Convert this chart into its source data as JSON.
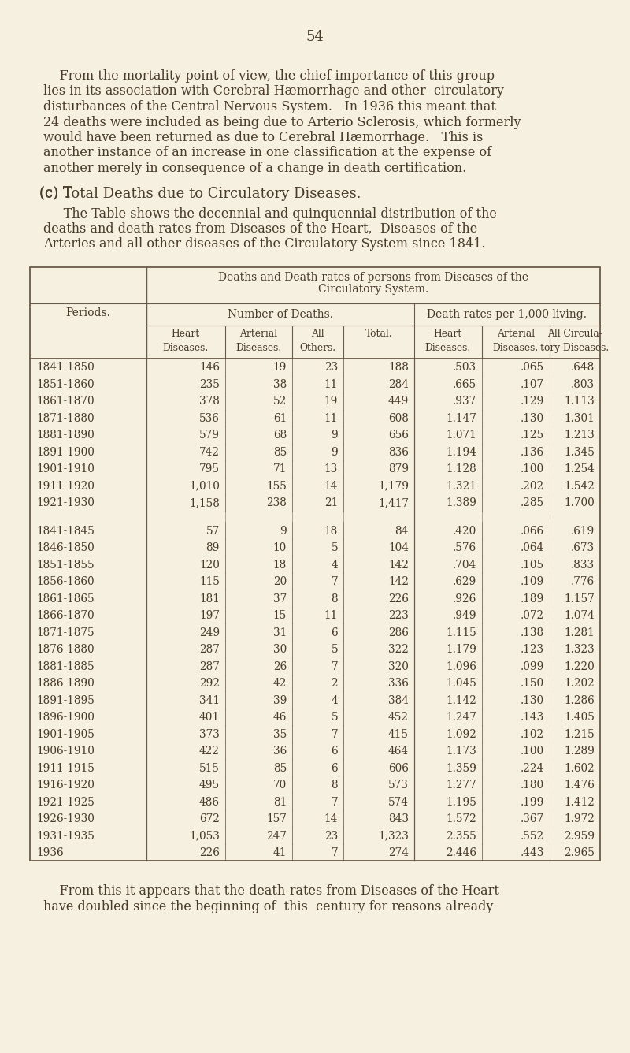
{
  "page_number": "54",
  "bg_color": "#f5f0e0",
  "text_color": "#4a3a2a",
  "decennial_rows": [
    [
      "1841-1850",
      "146",
      "19",
      "23",
      "188",
      ".503",
      ".065",
      ".648"
    ],
    [
      "1851-1860",
      "235",
      "38",
      "11",
      "284",
      ".665",
      ".107",
      ".803"
    ],
    [
      "1861-1870",
      "378",
      "52",
      "19",
      "449",
      ".937",
      ".129",
      "1.113"
    ],
    [
      "1871-1880",
      "536",
      "61",
      "11",
      "608",
      "1.147",
      ".130",
      "1.301"
    ],
    [
      "1881-1890",
      "579",
      "68",
      "9",
      "656",
      "1.071",
      ".125",
      "1.213"
    ],
    [
      "1891-1900",
      "742",
      "85",
      "9",
      "836",
      "1.194",
      ".136",
      "1.345"
    ],
    [
      "1901-1910",
      "795",
      "71",
      "13",
      "879",
      "1.128",
      ".100",
      "1.254"
    ],
    [
      "1911-1920",
      "1,010",
      "155",
      "14",
      "1,179",
      "1.321",
      ".202",
      "1.542"
    ],
    [
      "1921-1930",
      "1,158",
      "238",
      "21",
      "1,417",
      "1.389",
      ".285",
      "1.700"
    ]
  ],
  "quinquennial_rows": [
    [
      "1841-1845",
      "57",
      "9",
      "18",
      "84",
      ".420",
      ".066",
      ".619"
    ],
    [
      "1846-1850",
      "89",
      "10",
      "5",
      "104",
      ".576",
      ".064",
      ".673"
    ],
    [
      "1851-1855",
      "120",
      "18",
      "4",
      "142",
      ".704",
      ".105",
      ".833"
    ],
    [
      "1856-1860",
      "115",
      "20",
      "7",
      "142",
      ".629",
      ".109",
      ".776"
    ],
    [
      "1861-1865",
      "181",
      "37",
      "8",
      "226",
      ".926",
      ".189",
      "1.157"
    ],
    [
      "1866-1870",
      "197",
      "15",
      "11",
      "223",
      ".949",
      ".072",
      "1.074"
    ],
    [
      "1871-1875",
      "249",
      "31",
      "6",
      "286",
      "1.115",
      ".138",
      "1.281"
    ],
    [
      "1876-1880",
      "287",
      "30",
      "5",
      "322",
      "1.179",
      ".123",
      "1.323"
    ],
    [
      "1881-1885",
      "287",
      "26",
      "7",
      "320",
      "1.096",
      ".099",
      "1.220"
    ],
    [
      "1886-1890",
      "292",
      "42",
      "2",
      "336",
      "1.045",
      ".150",
      "1.202"
    ],
    [
      "1891-1895",
      "341",
      "39",
      "4",
      "384",
      "1.142",
      ".130",
      "1.286"
    ],
    [
      "1896-1900",
      "401",
      "46",
      "5",
      "452",
      "1.247",
      ".143",
      "1.405"
    ],
    [
      "1901-1905",
      "373",
      "35",
      "7",
      "415",
      "1.092",
      ".102",
      "1.215"
    ],
    [
      "1906-1910",
      "422",
      "36",
      "6",
      "464",
      "1.173",
      ".100",
      "1.289"
    ],
    [
      "1911-1915",
      "515",
      "85",
      "6",
      "606",
      "1.359",
      ".224",
      "1.602"
    ],
    [
      "1916-1920",
      "495",
      "70",
      "8",
      "573",
      "1.277",
      ".180",
      "1.476"
    ],
    [
      "1921-1925",
      "486",
      "81",
      "7",
      "574",
      "1.195",
      ".199",
      "1.412"
    ],
    [
      "1926-1930",
      "672",
      "157",
      "14",
      "843",
      "1.572",
      ".367",
      "1.972"
    ],
    [
      "1931-1935",
      "1,053",
      "247",
      "23",
      "1,323",
      "2.355",
      ".552",
      "2.959"
    ],
    [
      "1936",
      "226",
      "41",
      "7",
      "274",
      "2.446",
      ".443",
      "2.965"
    ]
  ]
}
